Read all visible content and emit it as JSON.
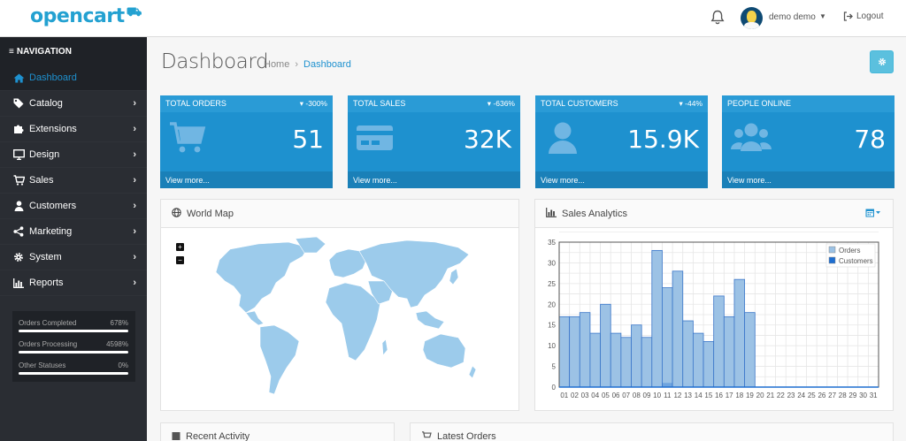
{
  "header": {
    "logo": "opencart",
    "user_name": "demo demo",
    "logout_label": "Logout"
  },
  "sidebar": {
    "nav_title": "NAVIGATION",
    "items": [
      {
        "label": "Dashboard",
        "icon": "home-icon",
        "active": true,
        "has_children": false
      },
      {
        "label": "Catalog",
        "icon": "tag-icon",
        "active": false,
        "has_children": true
      },
      {
        "label": "Extensions",
        "icon": "puzzle-icon",
        "active": false,
        "has_children": true
      },
      {
        "label": "Design",
        "icon": "monitor-icon",
        "active": false,
        "has_children": true
      },
      {
        "label": "Sales",
        "icon": "cart-icon",
        "active": false,
        "has_children": true
      },
      {
        "label": "Customers",
        "icon": "user-icon",
        "active": false,
        "has_children": true
      },
      {
        "label": "Marketing",
        "icon": "share-icon",
        "active": false,
        "has_children": true
      },
      {
        "label": "System",
        "icon": "gear-icon",
        "active": false,
        "has_children": true
      },
      {
        "label": "Reports",
        "icon": "bar-chart-icon",
        "active": false,
        "has_children": true
      }
    ],
    "stats": [
      {
        "label": "Orders Completed",
        "value": "678%"
      },
      {
        "label": "Orders Processing",
        "value": "4598%"
      },
      {
        "label": "Other Statuses",
        "value": "0%"
      }
    ]
  },
  "page": {
    "title": "Dashboard",
    "breadcrumb": [
      "Home",
      "Dashboard"
    ]
  },
  "tiles": [
    {
      "title": "TOTAL ORDERS",
      "change": "-300%",
      "value": "51",
      "footer": "View more...",
      "icon": "cart-icon"
    },
    {
      "title": "TOTAL SALES",
      "change": "-636%",
      "value": "32K",
      "footer": "View more...",
      "icon": "credit-card-icon"
    },
    {
      "title": "TOTAL CUSTOMERS",
      "change": "-44%",
      "value": "15.9K",
      "footer": "View more...",
      "icon": "user-icon"
    },
    {
      "title": "PEOPLE ONLINE",
      "change": "",
      "value": "78",
      "footer": "View more...",
      "icon": "users-icon"
    }
  ],
  "panels": {
    "world_map": "World Map",
    "sales_analytics": "Sales Analytics",
    "recent_activity": "Recent Activity",
    "latest_orders": "Latest Orders"
  },
  "colors": {
    "accent": "#1e91cf",
    "sidebar_bg": "#2a2d33",
    "map_land": "#9ccbeb",
    "orders": "#9cc2e5",
    "customers": "#1e6ed1"
  },
  "chart_data": {
    "type": "bar",
    "categories": [
      "01",
      "02",
      "03",
      "04",
      "05",
      "06",
      "07",
      "08",
      "09",
      "10",
      "11",
      "12",
      "13",
      "14",
      "15",
      "16",
      "17",
      "18",
      "19",
      "20",
      "21",
      "22",
      "23",
      "24",
      "25",
      "26",
      "27",
      "28",
      "29",
      "30",
      "31"
    ],
    "series": [
      {
        "name": "Orders",
        "values": [
          17,
          17,
          18,
          13,
          20,
          13,
          12,
          15,
          12,
          33,
          24,
          28,
          16,
          13,
          11,
          22,
          17,
          26,
          18,
          0,
          0,
          0,
          0,
          0,
          0,
          0,
          0,
          0,
          0,
          0,
          0
        ]
      },
      {
        "name": "Customers",
        "values": [
          0,
          0,
          0,
          0,
          0,
          0,
          0,
          0,
          0,
          0,
          1,
          0,
          0,
          0,
          0,
          0,
          0,
          0,
          0,
          0,
          0,
          0,
          0,
          0,
          0,
          0,
          0,
          0,
          0,
          0,
          0
        ]
      }
    ],
    "ylim": [
      0,
      35
    ],
    "yticks": [
      0,
      5,
      10,
      15,
      20,
      25,
      30,
      35
    ],
    "grid": true,
    "legend": "top-right"
  }
}
